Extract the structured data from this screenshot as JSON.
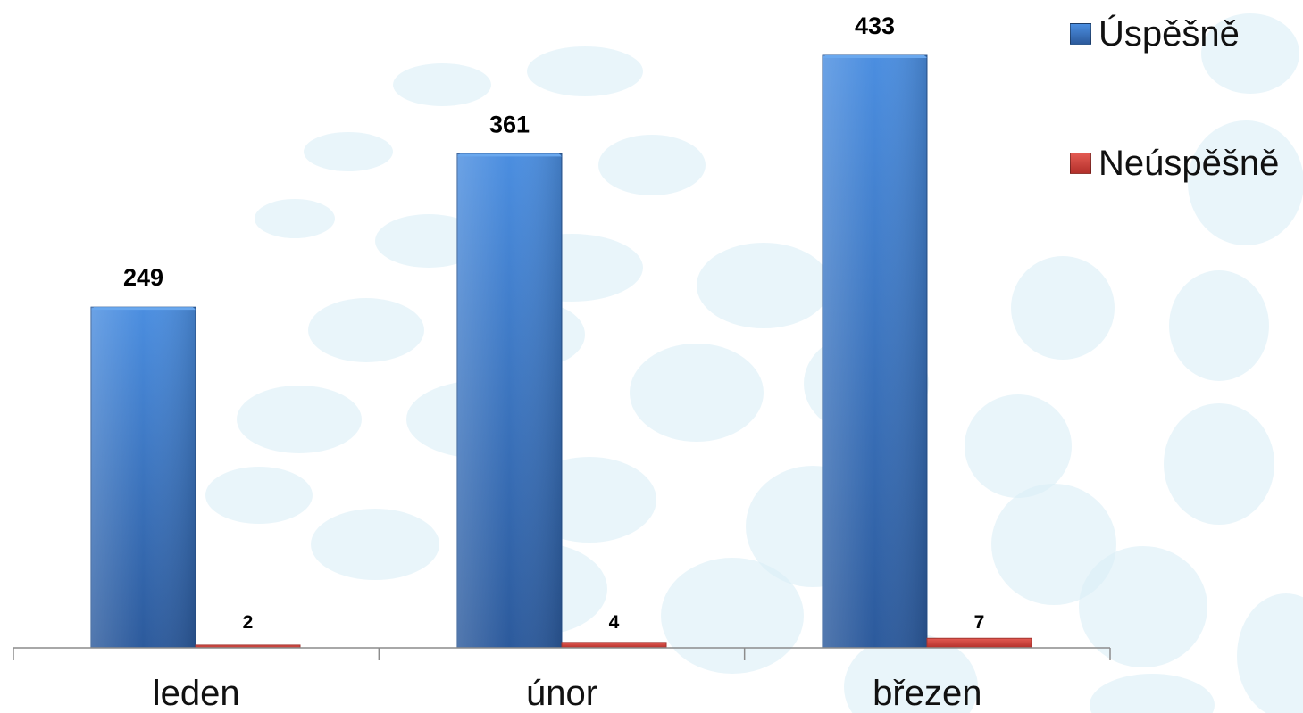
{
  "chart_data": {
    "type": "bar",
    "title": "",
    "xlabel": "",
    "ylabel": "",
    "categories": [
      "leden",
      "únor",
      "březen"
    ],
    "series": [
      {
        "name": "Úspěšně",
        "values": [
          249,
          361,
          433
        ],
        "color": "#3a75c4"
      },
      {
        "name": "Neúspěšně",
        "values": [
          2,
          4,
          7
        ],
        "color": "#d0403a"
      }
    ],
    "data_labels": true,
    "legend_position": "top-right",
    "grid": false
  }
}
